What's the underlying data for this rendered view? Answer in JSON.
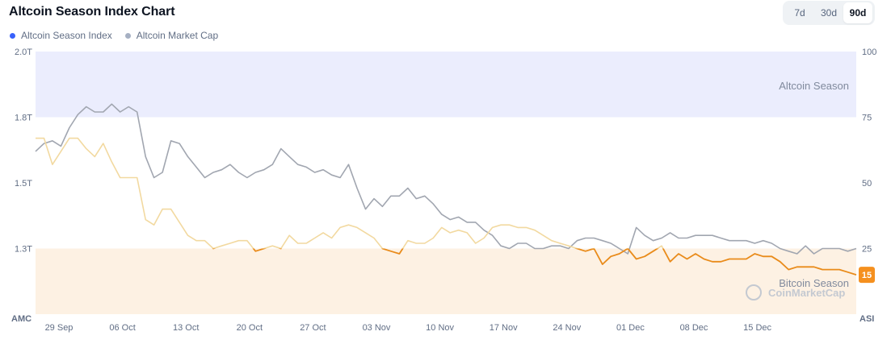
{
  "title": "Altcoin Season Index Chart",
  "legend": [
    {
      "label": "Altcoin Season Index",
      "color": "#3861fb"
    },
    {
      "label": "Altcoin Market Cap",
      "color": "#a6b0c3"
    }
  ],
  "range_buttons": [
    {
      "label": "7d",
      "active": false
    },
    {
      "label": "30d",
      "active": false
    },
    {
      "label": "90d",
      "active": true
    }
  ],
  "colors": {
    "asi_line": "#e98b1a",
    "asi_line_faded": "#f2d9a0",
    "amc_line": "#a1a6b0",
    "amc_line_faded": "#c9cce4",
    "altcoin_zone": "#ebedfd",
    "bitcoin_zone": "#fdf1e3",
    "badge": "#f5901f"
  },
  "watermark": "CoinMarketCap",
  "chart_data": {
    "type": "line",
    "x_labels": [
      "29 Sep",
      "06 Oct",
      "13 Oct",
      "20 Oct",
      "27 Oct",
      "03 Nov",
      "10 Nov",
      "17 Nov",
      "24 Nov",
      "01 Dec",
      "08 Dec",
      "15 Dec"
    ],
    "left_axis": {
      "name": "AMC",
      "ticks": [
        "2.0T",
        "1.8T",
        "1.5T",
        "1.3T"
      ],
      "range": [
        1.0,
        2.0
      ]
    },
    "right_axis": {
      "name": "ASI",
      "ticks": [
        "100",
        "75",
        "50",
        "25"
      ],
      "range": [
        0,
        100
      ]
    },
    "zones": [
      {
        "label": "Altcoin Season",
        "from": 75,
        "to": 100
      },
      {
        "label": "Bitcoin Season",
        "from": 0,
        "to": 25
      }
    ],
    "current_value": "15",
    "series": [
      {
        "name": "Altcoin Season Index",
        "axis": "right",
        "values": [
          67,
          67,
          57,
          62,
          67,
          67,
          63,
          60,
          65,
          58,
          52,
          52,
          52,
          36,
          34,
          40,
          40,
          35,
          30,
          28,
          28,
          25,
          26,
          27,
          28,
          28,
          24,
          25,
          26,
          25,
          30,
          27,
          27,
          29,
          31,
          29,
          33,
          34,
          33,
          31,
          29,
          25,
          24,
          23,
          28,
          27,
          27,
          29,
          33,
          31,
          32,
          31,
          27,
          29,
          33,
          34,
          34,
          33,
          33,
          32,
          30,
          28,
          27,
          26,
          25,
          24,
          25,
          19,
          22,
          23,
          25,
          21,
          22,
          24,
          26,
          20,
          23,
          21,
          23,
          21,
          20,
          20,
          21,
          21,
          21,
          23,
          22,
          22,
          20,
          17,
          18,
          18,
          18,
          17,
          17,
          17,
          16,
          15
        ]
      },
      {
        "name": "Altcoin Market Cap",
        "axis": "left",
        "values": [
          1.62,
          1.65,
          1.66,
          1.64,
          1.71,
          1.76,
          1.79,
          1.77,
          1.77,
          1.8,
          1.77,
          1.79,
          1.77,
          1.6,
          1.52,
          1.54,
          1.66,
          1.65,
          1.6,
          1.56,
          1.52,
          1.54,
          1.55,
          1.57,
          1.54,
          1.52,
          1.54,
          1.55,
          1.57,
          1.63,
          1.6,
          1.57,
          1.56,
          1.54,
          1.55,
          1.53,
          1.52,
          1.57,
          1.48,
          1.4,
          1.44,
          1.41,
          1.45,
          1.45,
          1.48,
          1.44,
          1.45,
          1.42,
          1.38,
          1.36,
          1.37,
          1.35,
          1.35,
          1.32,
          1.3,
          1.26,
          1.25,
          1.27,
          1.27,
          1.25,
          1.25,
          1.26,
          1.26,
          1.25,
          1.28,
          1.29,
          1.29,
          1.28,
          1.27,
          1.25,
          1.23,
          1.33,
          1.3,
          1.28,
          1.29,
          1.31,
          1.29,
          1.29,
          1.3,
          1.3,
          1.3,
          1.29,
          1.28,
          1.28,
          1.28,
          1.27,
          1.28,
          1.27,
          1.25,
          1.24,
          1.23,
          1.26,
          1.23,
          1.25,
          1.25,
          1.25,
          1.24,
          1.25
        ]
      }
    ]
  }
}
